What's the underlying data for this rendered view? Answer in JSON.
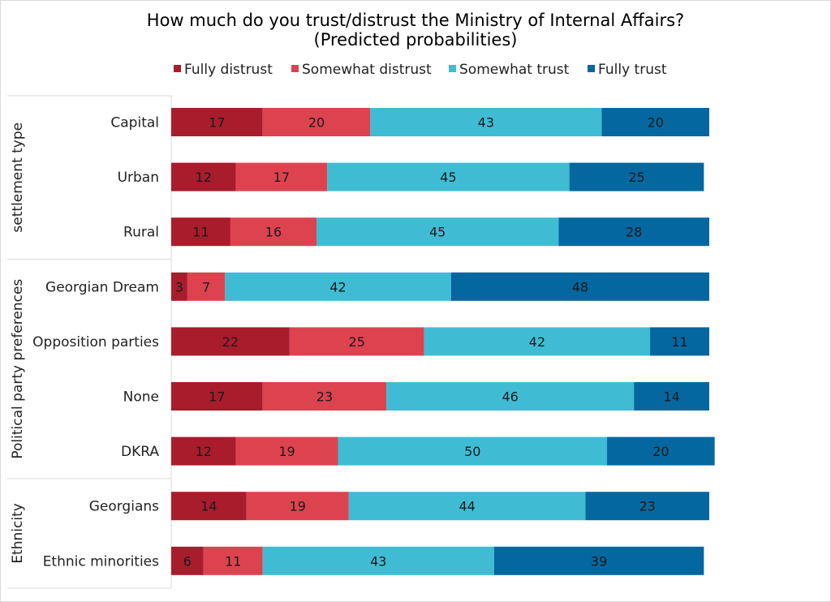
{
  "chart_data": {
    "type": "bar",
    "orientation": "horizontal",
    "stacked": true,
    "title": "How much do you trust/distrust the Ministry of Internal Affairs?",
    "subtitle": "(Predicted  probabilities)",
    "legend_position": "top",
    "grid": false,
    "xlim": [
      0,
      100
    ],
    "groups": [
      {
        "label": "settlement type",
        "categories": [
          "Capital",
          "Urban",
          "Rural"
        ]
      },
      {
        "label": "Political party preferences",
        "categories": [
          "Georgian Dream",
          "Opposition parties",
          "None",
          "DKRA"
        ]
      },
      {
        "label": "Ethnicity",
        "categories": [
          "Georgians",
          "Ethnic minorities"
        ]
      }
    ],
    "categories": [
      "Capital",
      "Urban",
      "Rural",
      "Georgian Dream",
      "Opposition parties",
      "None",
      "DKRA",
      "Georgians",
      "Ethnic minorities"
    ],
    "series": [
      {
        "name": "Fully distrust",
        "color": "#a81c2c",
        "values": [
          17,
          12,
          11,
          3,
          22,
          17,
          12,
          14,
          6
        ]
      },
      {
        "name": "Somewhat distrust",
        "color": "#dd434f",
        "values": [
          20,
          17,
          16,
          7,
          25,
          23,
          19,
          19,
          11
        ]
      },
      {
        "name": "Somewhat trust",
        "color": "#3fbcd4",
        "values": [
          43,
          45,
          45,
          42,
          42,
          46,
          50,
          44,
          43
        ]
      },
      {
        "name": "Fully trust",
        "color": "#04679f",
        "values": [
          20,
          25,
          28,
          48,
          11,
          14,
          20,
          23,
          39
        ]
      }
    ]
  }
}
